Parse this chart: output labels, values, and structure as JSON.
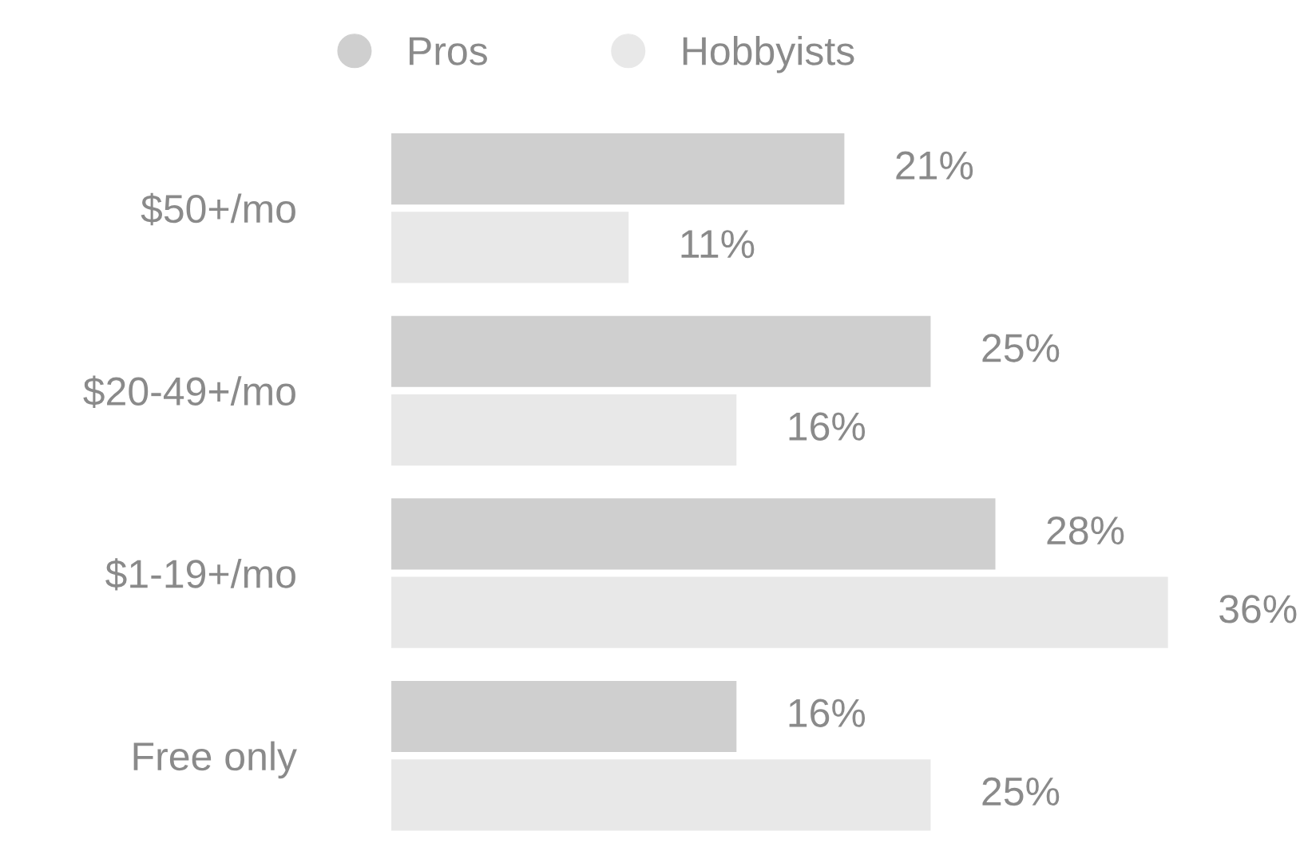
{
  "chart_data": {
    "type": "bar",
    "orientation": "horizontal",
    "categories": [
      "$50+/mo",
      "$20-49+/mo",
      "$1-19+/mo",
      "Free only"
    ],
    "series": [
      {
        "name": "Pros",
        "color": "#cfcfcf",
        "values": [
          21,
          25,
          28,
          16
        ],
        "value_labels": [
          "21%",
          "25%",
          "28%",
          "16%"
        ]
      },
      {
        "name": "Hobbyists",
        "color": "#e8e8e8",
        "values": [
          11,
          16,
          36,
          25
        ],
        "value_labels": [
          "11%",
          "16%",
          "36%",
          "25%"
        ]
      }
    ],
    "tick_labels": "y",
    "legend": "top"
  }
}
